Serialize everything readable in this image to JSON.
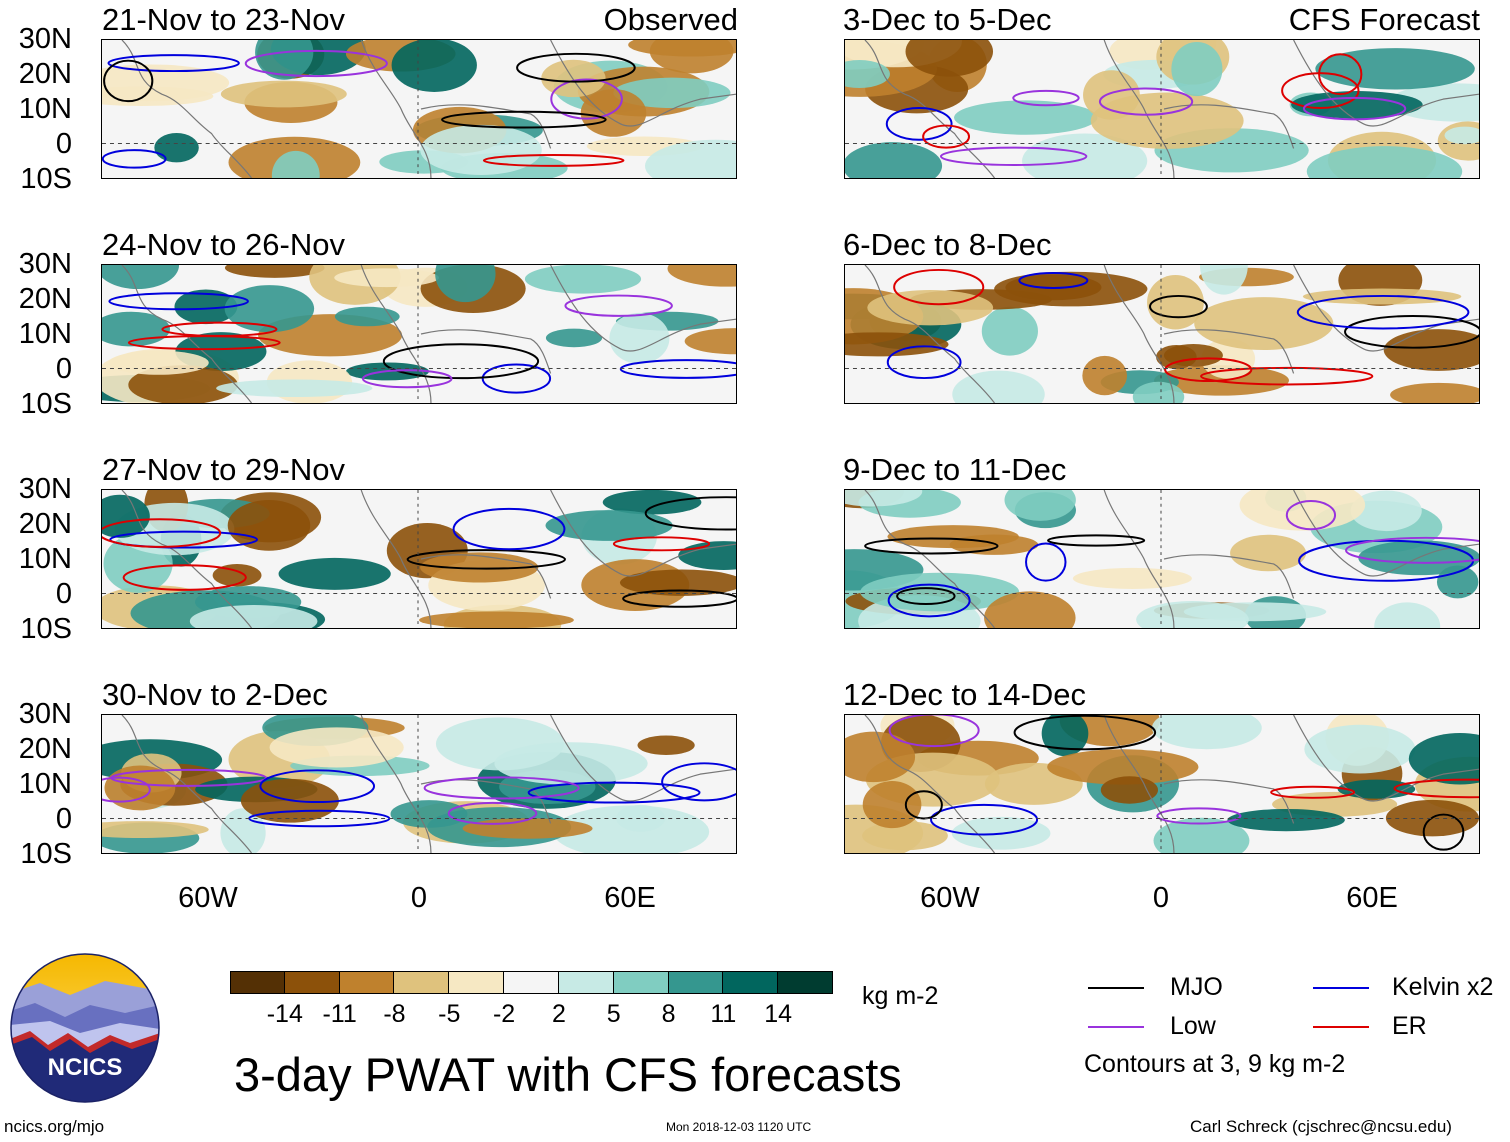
{
  "observed_label": "Observed",
  "forecast_label": "CFS Forecast",
  "panels_left": [
    {
      "title": "21-Nov to 23-Nov"
    },
    {
      "title": "24-Nov to 26-Nov"
    },
    {
      "title": "27-Nov to 29-Nov"
    },
    {
      "title": "30-Nov to 2-Dec"
    }
  ],
  "panels_right": [
    {
      "title": "3-Dec to 5-Dec"
    },
    {
      "title": "6-Dec to 8-Dec"
    },
    {
      "title": "9-Dec to 11-Dec"
    },
    {
      "title": "12-Dec to 14-Dec"
    }
  ],
  "lat_labels": [
    "30N",
    "20N",
    "10N",
    "0",
    "10S"
  ],
  "lon_labels": [
    "60W",
    "0",
    "60E"
  ],
  "colorbar": {
    "colors": [
      "#543005",
      "#8c510a",
      "#bf812d",
      "#dfc27d",
      "#f6e8c3",
      "#f5f5f5",
      "#c7eae5",
      "#80cdc1",
      "#35978f",
      "#01665e",
      "#003c30"
    ],
    "labels": [
      "-14",
      "-11",
      "-8",
      "-5",
      "-2",
      "2",
      "5",
      "8",
      "11",
      "14"
    ],
    "units": "kg m-2"
  },
  "legend": {
    "mjo": "MJO",
    "kelvin": "Kelvin x2",
    "low": "Low",
    "er": "ER",
    "colors": {
      "mjo": "#000000",
      "kelvin": "#0000dd",
      "low": "#9933dd",
      "er": "#dd0000"
    },
    "note": "Contours at 3, 9 kg m-2"
  },
  "main_title": "3-day PWAT with CFS forecasts",
  "logo_text": "NCICS",
  "footer": {
    "left": "ncics.org/mjo",
    "center": "Mon 2018-12-03 1120 UTC",
    "right": "Carl Schreck (cjschrec@ncsu.edu)"
  }
}
